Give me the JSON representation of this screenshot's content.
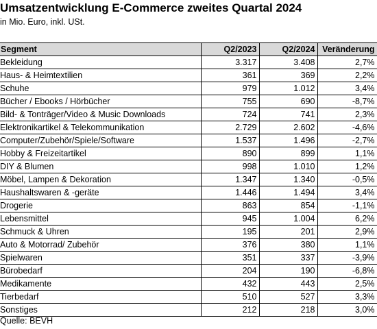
{
  "title": "Umsatzentwicklung E-Commerce zweites Quartal 2024",
  "subtitle": "in Mio. Euro, inkl. USt.",
  "table": {
    "headers": [
      "Segment",
      "Q2/2023",
      "Q2/2024",
      "Veränderung"
    ],
    "rows": [
      [
        "Bekleidung",
        "3.317",
        "3.408",
        "2,7%"
      ],
      [
        "Haus- & Heimtextilien",
        "361",
        "369",
        "2,2%"
      ],
      [
        "Schuhe",
        "979",
        "1.012",
        "3,4%"
      ],
      [
        "Bücher / Ebooks / Hörbücher",
        "755",
        "690",
        "-8,7%"
      ],
      [
        "Bild- & Tonträger/Video & Music Downloads",
        "724",
        "741",
        "2,3%"
      ],
      [
        "Elektronikartikel & Telekommunikation",
        "2.729",
        "2.602",
        "-4,6%"
      ],
      [
        "Computer/Zubehör/Spiele/Software",
        "1.537",
        "1.496",
        "-2,7%"
      ],
      [
        "Hobby & Freizeitartikel",
        "890",
        "899",
        "1,1%"
      ],
      [
        "DIY & Blumen",
        "998",
        "1.010",
        "1,2%"
      ],
      [
        "Möbel, Lampen & Dekoration",
        "1.347",
        "1.340",
        "-0,5%"
      ],
      [
        "Haushaltswaren & -geräte",
        "1.446",
        "1.494",
        "3,4%"
      ],
      [
        "Drogerie",
        "863",
        "854",
        "-1,1%"
      ],
      [
        "Lebensmittel",
        "945",
        "1.004",
        "6,2%"
      ],
      [
        "Schmuck & Uhren",
        "195",
        "201",
        "2,9%"
      ],
      [
        "Auto & Motorrad/ Zubehör",
        "376",
        "380",
        "1,1%"
      ],
      [
        "Spielwaren",
        "351",
        "337",
        "-3,9%"
      ],
      [
        "Bürobedarf",
        "204",
        "190",
        "-6,8%"
      ],
      [
        "Medikamente",
        "432",
        "443",
        "2,5%"
      ],
      [
        "Tierbedarf",
        "510",
        "527",
        "3,3%"
      ],
      [
        "Sonstiges",
        "212",
        "218",
        "3,0%"
      ]
    ]
  },
  "source": "Quelle: BEVH",
  "colors": {
    "header_bg": "#d9d9d9",
    "border": "#000000"
  }
}
